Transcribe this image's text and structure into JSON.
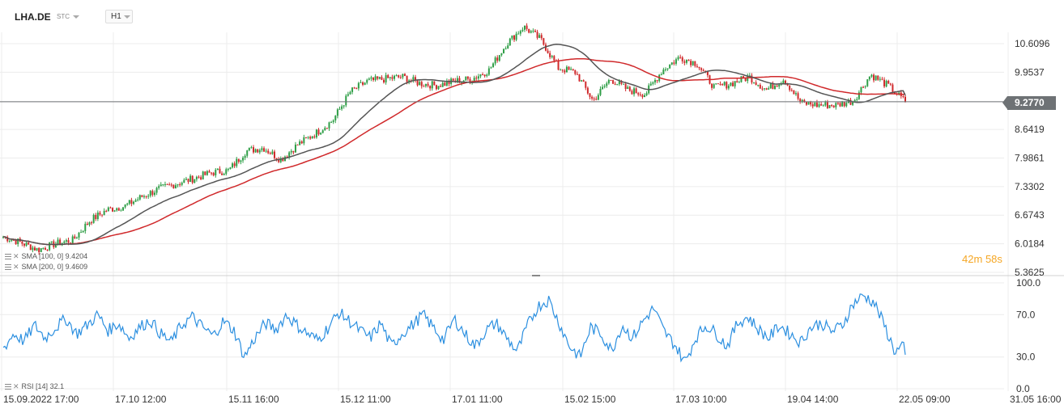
{
  "header": {
    "symbol": "LHA.DE",
    "symbol_type": "STC",
    "timeframe": "H1"
  },
  "price_panel": {
    "y_ticks": [
      "10.6096",
      "9.9537",
      "9.2770",
      "8.6419",
      "7.9861",
      "7.3302",
      "6.6743",
      "6.0184",
      "5.3625"
    ],
    "y_tick_values": [
      10.6096,
      9.9537,
      9.277,
      8.6419,
      7.9861,
      7.3302,
      6.6743,
      6.0184,
      5.3625
    ],
    "last_price": "9.2770",
    "countdown_minutes": "42",
    "countdown_m_unit": "m",
    "countdown_seconds": "58",
    "countdown_s_unit": "s",
    "legend": [
      {
        "text": "SMA [100, 0]  9.4204",
        "color": "#555555"
      },
      {
        "text": "SMA [200, 0]  9.4609",
        "color": "#d0292b"
      }
    ]
  },
  "rsi_panel": {
    "y_ticks": [
      "100.0",
      "70.0",
      "30.0",
      "0.0"
    ],
    "legend": "RSI [14]  32.1"
  },
  "time_axis": [
    "15.09.2022  17:00",
    "17.10  12:00",
    "15.11  16:00",
    "15.12  11:00",
    "17.01  11:00",
    "15.02  15:00",
    "17.03  10:00",
    "19.04  14:00",
    "22.05  09:00",
    "31.05  16:00"
  ],
  "colors": {
    "up": "#2e9e46",
    "down": "#d0292b",
    "sma100": "#555555",
    "sma200": "#d0292b",
    "rsi": "#2b8fe0",
    "countdown": "#f5a623"
  },
  "chart_data": [
    {
      "type": "candlestick",
      "title": "LHA.DE",
      "x_start": "15.09.2022 17:00",
      "x_end": "22.05 09:00",
      "ylim": [
        5.3625,
        11.0
      ],
      "last": 9.277,
      "close_path": [
        {
          "x": "15.09.2022",
          "y": 6.18
        },
        {
          "x": "22.09",
          "y": 6.05
        },
        {
          "x": "29.09",
          "y": 5.88
        },
        {
          "x": "05.10",
          "y": 6.02
        },
        {
          "x": "10.10",
          "y": 6.1
        },
        {
          "x": "14.10",
          "y": 6.55
        },
        {
          "x": "17.10",
          "y": 6.8
        },
        {
          "x": "24.10",
          "y": 6.88
        },
        {
          "x": "31.10",
          "y": 7.1
        },
        {
          "x": "07.11",
          "y": 7.28
        },
        {
          "x": "15.11",
          "y": 7.4
        },
        {
          "x": "22.11",
          "y": 7.52
        },
        {
          "x": "29.11",
          "y": 7.65
        },
        {
          "x": "06.12",
          "y": 7.7
        },
        {
          "x": "09.12",
          "y": 8.15
        },
        {
          "x": "15.12",
          "y": 8.22
        },
        {
          "x": "20.12",
          "y": 7.95
        },
        {
          "x": "28.12",
          "y": 8.3
        },
        {
          "x": "05.01",
          "y": 8.55
        },
        {
          "x": "10.01",
          "y": 8.85
        },
        {
          "x": "13.01",
          "y": 9.5
        },
        {
          "x": "17.01",
          "y": 9.75
        },
        {
          "x": "24.01",
          "y": 9.8
        },
        {
          "x": "31.01",
          "y": 9.85
        },
        {
          "x": "06.02",
          "y": 9.7
        },
        {
          "x": "10.02",
          "y": 9.65
        },
        {
          "x": "15.02",
          "y": 9.75
        },
        {
          "x": "20.02",
          "y": 9.8
        },
        {
          "x": "23.02",
          "y": 10.0
        },
        {
          "x": "27.02",
          "y": 10.6
        },
        {
          "x": "01.03",
          "y": 11.0
        },
        {
          "x": "06.03",
          "y": 10.7
        },
        {
          "x": "09.03",
          "y": 10.05
        },
        {
          "x": "13.03",
          "y": 9.95
        },
        {
          "x": "17.03",
          "y": 9.3
        },
        {
          "x": "20.03",
          "y": 9.8
        },
        {
          "x": "24.03",
          "y": 9.55
        },
        {
          "x": "28.03",
          "y": 9.45
        },
        {
          "x": "03.04",
          "y": 10.0
        },
        {
          "x": "06.04",
          "y": 10.3
        },
        {
          "x": "11.04",
          "y": 10.15
        },
        {
          "x": "14.04",
          "y": 9.6
        },
        {
          "x": "19.04",
          "y": 9.7
        },
        {
          "x": "24.04",
          "y": 9.85
        },
        {
          "x": "28.04",
          "y": 9.55
        },
        {
          "x": "03.05",
          "y": 9.8
        },
        {
          "x": "05.05",
          "y": 9.25
        },
        {
          "x": "09.05",
          "y": 9.2
        },
        {
          "x": "12.05",
          "y": 9.2
        },
        {
          "x": "15.05",
          "y": 9.3
        },
        {
          "x": "17.05",
          "y": 9.9
        },
        {
          "x": "19.05",
          "y": 9.65
        },
        {
          "x": "22.05",
          "y": 9.28
        }
      ],
      "series": [
        {
          "name": "SMA [100, 0]",
          "values_at_end": 9.4204
        },
        {
          "name": "SMA [200, 0]",
          "values_at_end": 9.4609
        }
      ]
    },
    {
      "type": "line",
      "title": "RSI [14]",
      "ylim": [
        0,
        100
      ],
      "last": 32.1,
      "values": [
        38,
        52,
        45,
        60,
        48,
        58,
        66,
        52,
        60,
        70,
        55,
        62,
        48,
        58,
        65,
        52,
        44,
        60,
        68,
        58,
        50,
        64,
        55,
        30,
        48,
        62,
        56,
        70,
        60,
        52,
        46,
        58,
        72,
        64,
        55,
        48,
        62,
        40,
        52,
        60,
        70,
        58,
        46,
        66,
        52,
        40,
        55,
        62,
        48,
        35,
        60,
        78,
        84,
        62,
        40,
        30,
        58,
        52,
        36,
        60,
        48,
        64,
        76,
        54,
        42,
        25,
        48,
        60,
        52,
        40,
        62,
        68,
        56,
        48,
        60,
        52,
        44,
        58,
        62,
        54,
        60,
        80,
        88,
        82,
        60,
        35,
        40
      ]
    }
  ]
}
